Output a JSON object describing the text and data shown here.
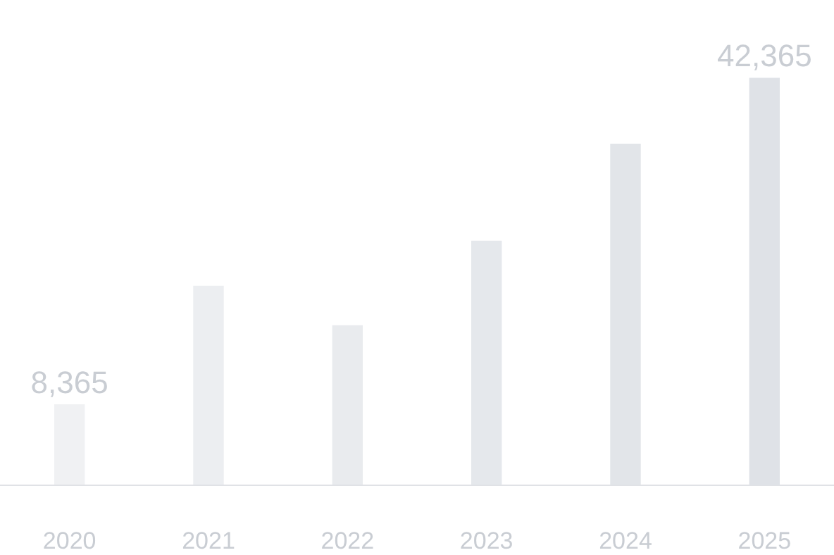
{
  "chart_data": {
    "type": "bar",
    "categories": [
      "2020",
      "2021",
      "2022",
      "2023",
      "2024",
      "2025"
    ],
    "values": [
      8365,
      20700,
      16600,
      25400,
      35500,
      42365
    ],
    "colors": [
      "#f0f1f3",
      "#eceef1",
      "#e9ebee",
      "#e5e8ec",
      "#e2e5e9",
      "#dfe2e7"
    ],
    "value_labels": [
      "8,365",
      null,
      null,
      null,
      null,
      "42,365"
    ],
    "legend": false
  }
}
